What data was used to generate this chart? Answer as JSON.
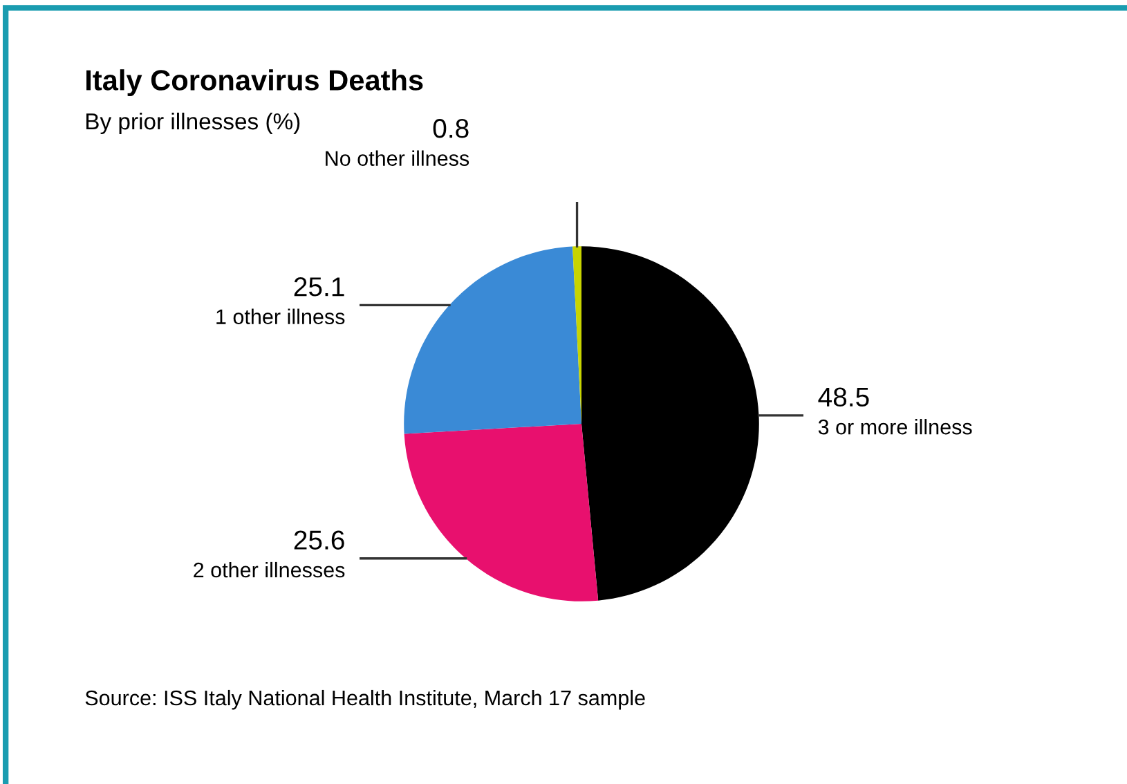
{
  "chart_data": {
    "type": "pie",
    "title": "Italy Coronavirus Deaths",
    "subtitle": "By prior illnesses (%)",
    "categories": [
      "3 or more illness",
      "2 other illnesses",
      "1 other illness",
      "No other illness"
    ],
    "values": [
      48.5,
      25.6,
      25.1,
      0.8
    ],
    "colors": [
      "#000000",
      "#e8106e",
      "#3a8ad6",
      "#c8d400"
    ],
    "annotations": [
      "Source: ISS Italy National Health Institute, March 17 sample"
    ],
    "data_labels": true,
    "legend": false
  }
}
